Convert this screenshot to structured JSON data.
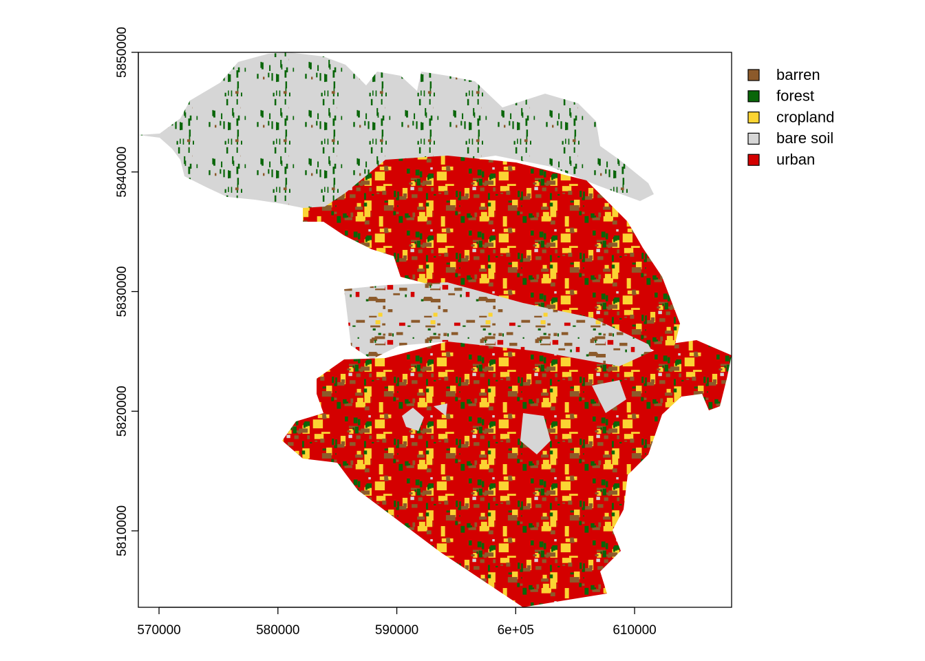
{
  "chart_data": {
    "type": "raster-map",
    "xlim": [
      568260,
      618160
    ],
    "ylim": [
      5803610,
      5850000
    ],
    "xticks": [
      570000,
      580000,
      590000,
      {
        "value": 600000,
        "label": "6e+05"
      },
      610000
    ],
    "yticks": [
      5810000,
      5820000,
      5830000,
      5840000,
      5850000
    ],
    "legend": {
      "position": "right",
      "entries": [
        {
          "name": "barren",
          "color": "#8c5a2b"
        },
        {
          "name": "forest",
          "color": "#0a660a"
        },
        {
          "name": "cropland",
          "color": "#fbd433"
        },
        {
          "name": "bare soil",
          "color": "#d6d6d6"
        },
        {
          "name": "urban",
          "color": "#d40000"
        }
      ]
    }
  }
}
